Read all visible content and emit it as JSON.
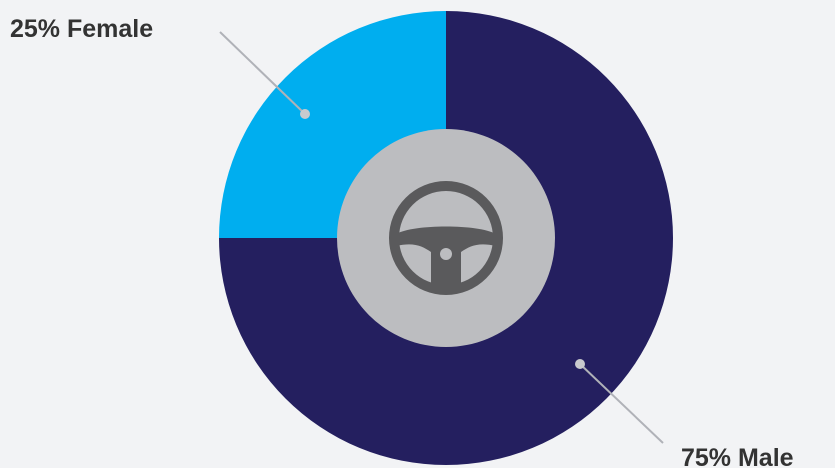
{
  "chart_data": {
    "type": "pie",
    "donut": true,
    "slices": [
      {
        "label": "25% Female",
        "name": "Female",
        "value": 25,
        "color": "#00aeef"
      },
      {
        "label": "75% Male",
        "name": "Male",
        "value": 75,
        "color": "#241f5f"
      }
    ]
  },
  "center_icon": {
    "name": "steering-wheel-icon",
    "color": "#5a5a5c",
    "hole_color": "#bcbdc0"
  },
  "leader_color": "#b0b2b8"
}
